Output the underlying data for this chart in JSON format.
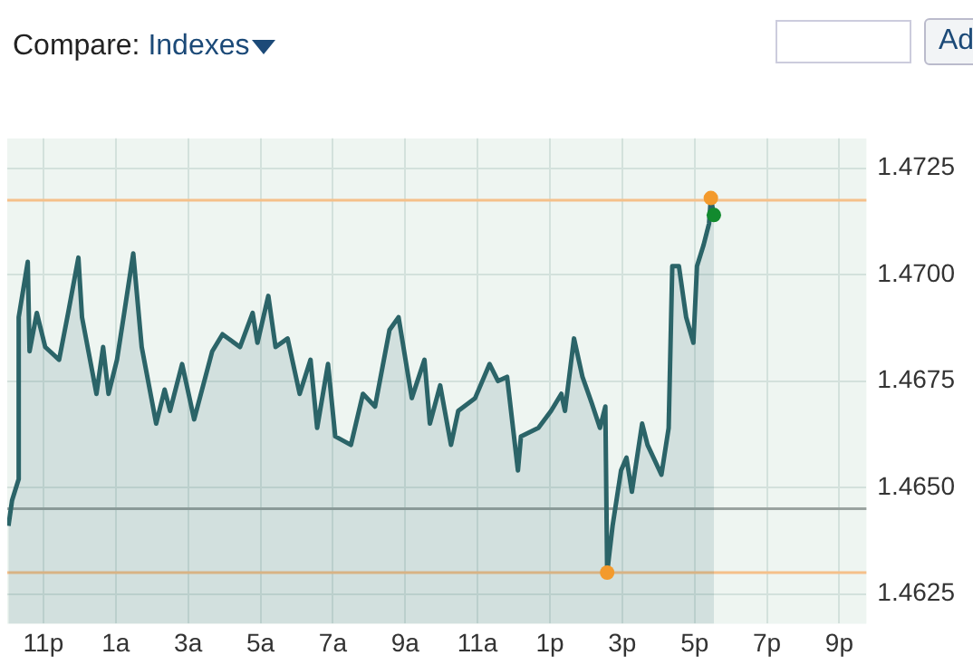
{
  "chart_data": {
    "type": "area",
    "annotations": [
      "Compare:",
      "Indexes",
      "Ad"
    ],
    "xlim": [
      "--01-01T22:00",
      "--01-02T21:45"
    ],
    "xticks": [
      {
        "value": "--01-01T23:00",
        "label": "11p"
      },
      {
        "value": "--01-02T01:00",
        "label": "1a"
      },
      {
        "value": "--01-02T03:00",
        "label": "3a"
      },
      {
        "value": "--01-02T05:00",
        "label": "5a"
      },
      {
        "value": "--01-02T07:00",
        "label": "7a"
      },
      {
        "value": "--01-02T09:00",
        "label": "9a"
      },
      {
        "value": "--01-02T11:00",
        "label": "11a"
      },
      {
        "value": "--01-02T13:00",
        "label": "1p"
      },
      {
        "value": "--01-02T15:00",
        "label": "3p"
      },
      {
        "value": "--01-02T17:00",
        "label": "5p"
      },
      {
        "value": "--01-02T19:00",
        "label": "7p"
      },
      {
        "value": "--01-02T21:00",
        "label": "9p"
      }
    ],
    "ylim": [
      1.4618,
      1.4732
    ],
    "yticks": [
      1.4625,
      {
        "value": 1.465,
        "label": "1.4650"
      },
      1.4675,
      {
        "value": 1.47,
        "label": "1.4700"
      },
      1.4725
    ],
    "grid": true,
    "legend": false,
    "ref_lines": [
      {
        "axis": "y",
        "value": 1.47175,
        "color": "#f5c08a"
      },
      {
        "axis": "y",
        "value": 1.463,
        "color": "#f5c08a"
      },
      {
        "axis": "y",
        "value": 1.4645,
        "color": "#9aa3a0"
      }
    ],
    "series": [
      {
        "color": "#2b6468",
        "marker": "none",
        "x": [
          "--01-01T22:02",
          "--01-01T22:08",
          "--01-01T22:19",
          "--01-01T22:19",
          "--01-01T22:34",
          "--01-01T22:37",
          "--01-01T22:49",
          "--01-01T23:03",
          "--01-01T23:26",
          "--01-01T23:41",
          "--01-01T23:58",
          "--01-02T00:04",
          "--01-02T00:28",
          "--01-02T00:39",
          "--01-02T00:48",
          "--01-02T01:02",
          "--01-02T01:14",
          "--01-02T01:29",
          "--01-02T01:43",
          "--01-02T02:07",
          "--01-02T02:21",
          "--01-02T02:30",
          "--01-02T02:50",
          "--01-02T03:10",
          "--01-02T03:40",
          "--01-02T03:57",
          "--01-02T04:26",
          "--01-02T04:47",
          "--01-02T04:55",
          "--01-02T05:13",
          "--01-02T05:25",
          "--01-02T05:45",
          "--01-02T06:05",
          "--01-02T06:23",
          "--01-02T06:34",
          "--01-02T06:52",
          "--01-02T07:04",
          "--01-02T07:30",
          "--01-02T07:50",
          "--01-02T08:10",
          "--01-02T08:34",
          "--01-02T08:49",
          "--01-02T09:11",
          "--01-02T09:32",
          "--01-02T09:41",
          "--01-02T09:58",
          "--01-02T10:16",
          "--01-02T10:28",
          "--01-02T10:56",
          "--01-02T11:20",
          "--01-02T11:34",
          "--01-02T11:49",
          "--01-02T12:07",
          "--01-02T12:12",
          "--01-02T12:41",
          "--01-02T13:02",
          "--01-02T13:19",
          "--01-02T13:25",
          "--01-02T13:40",
          "--01-02T13:54",
          "--01-02T14:09",
          "--01-02T14:23",
          "--01-02T14:32",
          "--01-02T14:35",
          "--01-02T14:44",
          "--01-02T14:58",
          "--01-02T15:07",
          "--01-02T15:16",
          "--01-02T15:33",
          "--01-02T15:42",
          "--01-02T16:05",
          "--01-02T16:17",
          "--01-02T16:23",
          "--01-02T16:34",
          "--01-02T16:46",
          "--01-02T16:58",
          "--01-02T17:04",
          "--01-02T17:15",
          "--01-02T17:24",
          "--01-02T17:27",
          "--01-02T17:32"
        ],
        "values": [
          1.4641,
          1.4647,
          1.4652,
          1.469,
          1.4703,
          1.4682,
          1.4691,
          1.4683,
          1.468,
          1.4691,
          1.4704,
          1.469,
          1.4672,
          1.4683,
          1.4672,
          1.468,
          1.4691,
          1.4705,
          1.4683,
          1.4665,
          1.4673,
          1.4668,
          1.4679,
          1.4666,
          1.4682,
          1.4686,
          1.4683,
          1.4691,
          1.4684,
          1.4695,
          1.4683,
          1.4685,
          1.4672,
          1.468,
          1.4664,
          1.4679,
          1.4662,
          1.466,
          1.4672,
          1.4669,
          1.4687,
          1.469,
          1.4671,
          1.468,
          1.4665,
          1.4674,
          1.466,
          1.4668,
          1.4671,
          1.4679,
          1.4675,
          1.4676,
          1.4654,
          1.4662,
          1.4664,
          1.4668,
          1.4672,
          1.4668,
          1.4685,
          1.4676,
          1.467,
          1.4664,
          1.4669,
          1.463,
          1.4641,
          1.4654,
          1.4657,
          1.4649,
          1.4665,
          1.466,
          1.4653,
          1.4664,
          1.4702,
          1.4702,
          1.469,
          1.4684,
          1.4702,
          1.4707,
          1.4712,
          1.4718,
          1.4714
        ]
      },
      {
        "type": "scatter",
        "color": "#f39a2c",
        "marker": "circle",
        "x": [
          "--01-02T14:35",
          "--01-02T17:27"
        ],
        "values": [
          1.463,
          1.4718
        ]
      },
      {
        "type": "scatter",
        "color": "#128a2e",
        "marker": "circle",
        "x": [
          "--01-02T17:32"
        ],
        "values": [
          1.4714
        ]
      }
    ]
  }
}
